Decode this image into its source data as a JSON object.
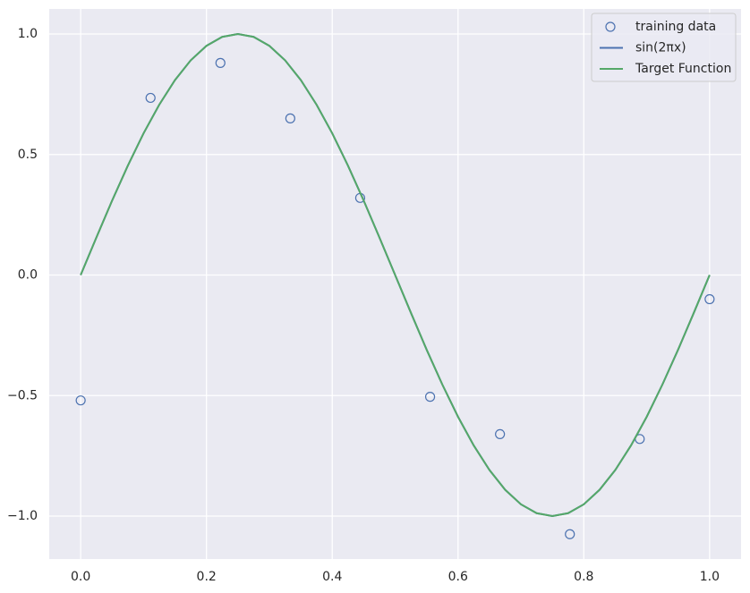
{
  "chart_data": {
    "type": "line",
    "series": [
      {
        "name": "training data",
        "color": "#4c72b0",
        "marker": "o",
        "x": [
          0,
          0.1111,
          0.2222,
          0.3333,
          0.4444,
          0.5556,
          0.6667,
          0.7778,
          0.8889,
          1
        ],
        "values": [
          -0.52,
          0.735,
          0.88,
          0.65,
          0.32,
          -0.505,
          -0.66,
          -1.075,
          -0.68,
          -0.1
        ]
      },
      {
        "name": "sin(2πx)",
        "color": "#4c72b0",
        "marker": "line",
        "x": [
          0,
          0.025,
          0.05,
          0.075,
          0.1,
          0.125,
          0.15,
          0.175,
          0.2,
          0.225,
          0.25,
          0.275,
          0.3,
          0.325,
          0.35,
          0.375,
          0.4,
          0.425,
          0.45,
          0.475,
          0.5,
          0.525,
          0.55,
          0.575,
          0.6,
          0.625,
          0.65,
          0.675,
          0.7,
          0.725,
          0.75,
          0.775,
          0.8,
          0.825,
          0.85,
          0.875,
          0.9,
          0.925,
          0.95,
          0.975,
          1
        ],
        "values": [
          0,
          0.156,
          0.309,
          0.454,
          0.588,
          0.707,
          0.809,
          0.891,
          0.951,
          0.988,
          1,
          0.988,
          0.951,
          0.891,
          0.809,
          0.707,
          0.588,
          0.454,
          0.309,
          0.156,
          0,
          -0.156,
          -0.309,
          -0.454,
          -0.588,
          -0.707,
          -0.809,
          -0.891,
          -0.951,
          -0.988,
          -1,
          -0.988,
          -0.951,
          -0.891,
          -0.809,
          -0.707,
          -0.588,
          -0.454,
          -0.309,
          -0.156,
          0
        ]
      },
      {
        "name": "Target Function",
        "color": "#55a868",
        "marker": "line",
        "x": [
          0,
          0.025,
          0.05,
          0.075,
          0.1,
          0.125,
          0.15,
          0.175,
          0.2,
          0.225,
          0.25,
          0.275,
          0.3,
          0.325,
          0.35,
          0.375,
          0.4,
          0.425,
          0.45,
          0.475,
          0.5,
          0.525,
          0.55,
          0.575,
          0.6,
          0.625,
          0.65,
          0.675,
          0.7,
          0.725,
          0.75,
          0.775,
          0.8,
          0.825,
          0.85,
          0.875,
          0.9,
          0.925,
          0.95,
          0.975,
          1
        ],
        "values": [
          0,
          0.156,
          0.309,
          0.454,
          0.588,
          0.707,
          0.809,
          0.891,
          0.951,
          0.988,
          1,
          0.988,
          0.951,
          0.891,
          0.809,
          0.707,
          0.588,
          0.454,
          0.309,
          0.156,
          0,
          -0.156,
          -0.309,
          -0.454,
          -0.588,
          -0.707,
          -0.809,
          -0.891,
          -0.951,
          -0.988,
          -1,
          -0.988,
          -0.951,
          -0.891,
          -0.809,
          -0.707,
          -0.588,
          -0.454,
          -0.309,
          -0.156,
          0
        ]
      }
    ],
    "xlim": [
      -0.05,
      1.05
    ],
    "ylim": [
      -1.178,
      1.104
    ],
    "xticks": [
      {
        "value": 0,
        "label": "0.0"
      },
      0.2,
      0.4,
      0.6,
      0.8,
      {
        "value": 1,
        "label": "1.0"
      }
    ],
    "yticks": [
      {
        "value": -1,
        "label": "−1.0"
      },
      {
        "value": -0.5,
        "label": "−0.5"
      },
      {
        "value": 0,
        "label": "0.0"
      },
      0.5,
      {
        "value": 1,
        "label": "1.0"
      }
    ],
    "grid": true,
    "legend": "upper right"
  }
}
